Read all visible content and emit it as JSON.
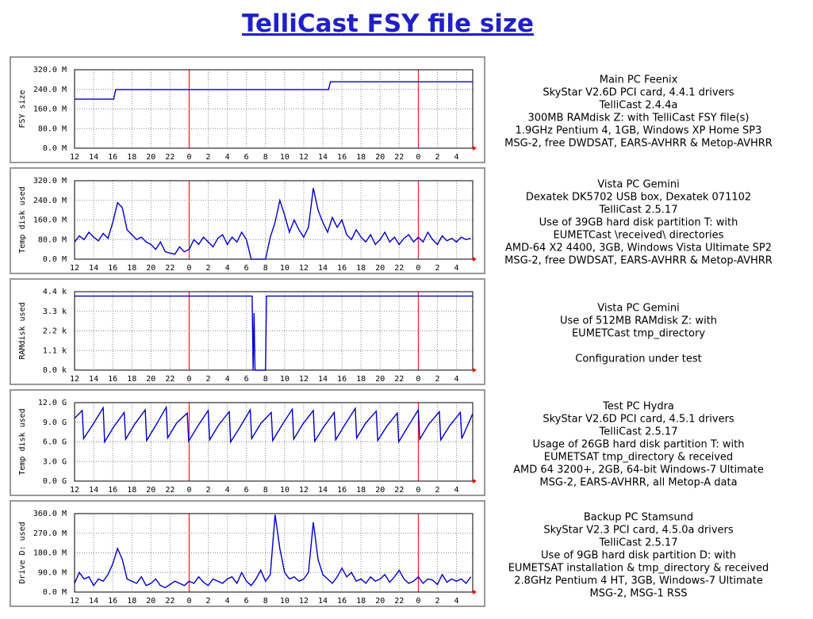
{
  "title": "TelliCast FSY file size",
  "chart_data": [
    {
      "type": "line",
      "ylabel": "FSY size",
      "color": "#0000cc",
      "ylim": [
        0,
        320
      ],
      "yticks": [
        {
          "value": 0,
          "label": "0.0 M"
        },
        {
          "value": 80,
          "label": "80.0 M"
        },
        {
          "value": 160,
          "label": "160.0 M"
        },
        {
          "value": 240,
          "label": "240.0 M"
        },
        {
          "value": 320,
          "label": "320.0 M"
        }
      ],
      "xlim": [
        0,
        41.7
      ],
      "xticks": [
        {
          "value": 0,
          "label": "12"
        },
        {
          "value": 2,
          "label": "14"
        },
        {
          "value": 4,
          "label": "16"
        },
        {
          "value": 6,
          "label": "18"
        },
        {
          "value": 8,
          "label": "20"
        },
        {
          "value": 10,
          "label": "22"
        },
        {
          "value": 12,
          "label": "0"
        },
        {
          "value": 14,
          "label": "2"
        },
        {
          "value": 16,
          "label": "4"
        },
        {
          "value": 18,
          "label": "6"
        },
        {
          "value": 20,
          "label": "8"
        },
        {
          "value": 22,
          "label": "10"
        },
        {
          "value": 24,
          "label": "12"
        },
        {
          "value": 26,
          "label": "14"
        },
        {
          "value": 28,
          "label": "16"
        },
        {
          "value": 30,
          "label": "18"
        },
        {
          "value": 32,
          "label": "20"
        },
        {
          "value": 34,
          "label": "22"
        },
        {
          "value": 36,
          "label": "0"
        },
        {
          "value": 38,
          "label": "2"
        },
        {
          "value": 40,
          "label": "4"
        }
      ],
      "highlight_x": [
        12,
        36
      ],
      "highlight_color": "#ff0000",
      "x": [
        0,
        4.1,
        4.3,
        26.6,
        26.8,
        41.7
      ],
      "values": [
        200,
        200,
        239,
        239,
        271,
        271
      ],
      "description": [
        "Main PC Feenix",
        "SkyStar V2.6D PCI card, 4.4.1 drivers",
        "TelliCast 2.4.4a",
        "300MB RAMdisk Z: with TelliCast FSY file(s)",
        "1.9GHz Pentium 4, 1GB, Windows XP Home SP3",
        "MSG-2, free DWDSAT, EARS-AVHRR & Metop-AVHRR"
      ]
    },
    {
      "type": "line",
      "ylabel": "Temp disk used",
      "color": "#0000cc",
      "ylim": [
        0,
        320
      ],
      "yticks": [
        {
          "value": 0,
          "label": "0.0 M"
        },
        {
          "value": 80,
          "label": "80.0 M"
        },
        {
          "value": 160,
          "label": "160.0 M"
        },
        {
          "value": 240,
          "label": "240.0 M"
        },
        {
          "value": 320,
          "label": "320.0 M"
        }
      ],
      "xlim": [
        0,
        41.7
      ],
      "xticks": [
        {
          "value": 0,
          "label": "12"
        },
        {
          "value": 2,
          "label": "14"
        },
        {
          "value": 4,
          "label": "16"
        },
        {
          "value": 6,
          "label": "18"
        },
        {
          "value": 8,
          "label": "20"
        },
        {
          "value": 10,
          "label": "22"
        },
        {
          "value": 12,
          "label": "0"
        },
        {
          "value": 14,
          "label": "2"
        },
        {
          "value": 16,
          "label": "4"
        },
        {
          "value": 18,
          "label": "6"
        },
        {
          "value": 20,
          "label": "8"
        },
        {
          "value": 22,
          "label": "10"
        },
        {
          "value": 24,
          "label": "12"
        },
        {
          "value": 26,
          "label": "14"
        },
        {
          "value": 28,
          "label": "16"
        },
        {
          "value": 30,
          "label": "18"
        },
        {
          "value": 32,
          "label": "20"
        },
        {
          "value": 34,
          "label": "22"
        },
        {
          "value": 36,
          "label": "0"
        },
        {
          "value": 38,
          "label": "2"
        },
        {
          "value": 40,
          "label": "4"
        }
      ],
      "highlight_x": [
        12,
        36
      ],
      "highlight_color": "#ff0000",
      "x": [
        0,
        0.5,
        1,
        1.5,
        2,
        2.5,
        3,
        3.5,
        4,
        4.5,
        5,
        5.5,
        6,
        6.5,
        7,
        7.5,
        8,
        8.5,
        9,
        9.5,
        10,
        10.5,
        11,
        11.5,
        12,
        12.5,
        13,
        13.5,
        14,
        14.5,
        15,
        15.5,
        16,
        16.5,
        17,
        17.5,
        18,
        18.5,
        19,
        19.5,
        20,
        20.5,
        21,
        21.5,
        22,
        22.5,
        23,
        23.5,
        24,
        24.5,
        25,
        25.5,
        26,
        26.5,
        27,
        27.5,
        28,
        28.5,
        29,
        29.5,
        30,
        30.5,
        31,
        31.5,
        32,
        32.5,
        33,
        33.5,
        34,
        34.5,
        35,
        35.5,
        36,
        36.5,
        37,
        37.5,
        38,
        38.5,
        39,
        39.5,
        40,
        40.5,
        41,
        41.5
      ],
      "values": [
        70,
        95,
        80,
        110,
        90,
        75,
        105,
        85,
        150,
        230,
        210,
        120,
        100,
        80,
        90,
        70,
        60,
        40,
        70,
        30,
        25,
        20,
        50,
        30,
        40,
        80,
        60,
        90,
        70,
        50,
        85,
        100,
        60,
        90,
        70,
        110,
        80,
        0,
        0,
        0,
        0,
        90,
        150,
        240,
        180,
        110,
        160,
        120,
        90,
        130,
        290,
        200,
        150,
        110,
        170,
        130,
        160,
        100,
        80,
        120,
        90,
        70,
        100,
        60,
        80,
        110,
        70,
        90,
        60,
        85,
        100,
        70,
        90,
        70,
        110,
        80,
        60,
        95,
        75,
        85,
        70,
        90,
        80,
        85
      ],
      "description": [
        "Vista PC Gemini",
        "Dexatek DK5702 USB box, Dexatek 071102",
        "TelliCast 2.5.17",
        "Use of 39GB hard disk partition T: with",
        "EUMETCast \\received\\ directories",
        "AMD-64 X2 4400, 3GB, Windows Vista Ultimate SP2",
        "MSG-2, free DWDSAT, EARS-AVHRR & Metop-AVHRR"
      ]
    },
    {
      "type": "line",
      "ylabel": "RAMdisk used",
      "color": "#0000cc",
      "ylim": [
        0,
        4.4
      ],
      "yticks": [
        {
          "value": 0,
          "label": "0.0 k"
        },
        {
          "value": 1.1,
          "label": "1.1 k"
        },
        {
          "value": 2.2,
          "label": "2.2 k"
        },
        {
          "value": 3.3,
          "label": "3.3 k"
        },
        {
          "value": 4.4,
          "label": "4.4 k"
        }
      ],
      "xlim": [
        0,
        41.7
      ],
      "xticks": [
        {
          "value": 0,
          "label": "12"
        },
        {
          "value": 2,
          "label": "14"
        },
        {
          "value": 4,
          "label": "16"
        },
        {
          "value": 6,
          "label": "18"
        },
        {
          "value": 8,
          "label": "20"
        },
        {
          "value": 10,
          "label": "22"
        },
        {
          "value": 12,
          "label": "0"
        },
        {
          "value": 14,
          "label": "2"
        },
        {
          "value": 16,
          "label": "4"
        },
        {
          "value": 18,
          "label": "6"
        },
        {
          "value": 20,
          "label": "8"
        },
        {
          "value": 22,
          "label": "10"
        },
        {
          "value": 24,
          "label": "12"
        },
        {
          "value": 26,
          "label": "14"
        },
        {
          "value": 28,
          "label": "16"
        },
        {
          "value": 30,
          "label": "18"
        },
        {
          "value": 32,
          "label": "20"
        },
        {
          "value": 34,
          "label": "22"
        },
        {
          "value": 36,
          "label": "0"
        },
        {
          "value": 38,
          "label": "2"
        },
        {
          "value": 40,
          "label": "4"
        }
      ],
      "highlight_x": [
        12,
        36
      ],
      "highlight_color": "#ff0000",
      "x": [
        0,
        18.6,
        18.7,
        18.8,
        18.9,
        20.0,
        20.1,
        41.7
      ],
      "values": [
        4.15,
        4.15,
        0,
        3.2,
        0,
        0,
        4.15,
        4.15
      ],
      "description": [
        "Vista PC Gemini",
        "Use of 512MB RAMdisk Z: with",
        "EUMETCast tmp_directory"
      ],
      "note": "Configuration under test"
    },
    {
      "type": "line",
      "ylabel": "Temp disk used",
      "color": "#0000cc",
      "ylim": [
        0,
        12
      ],
      "yticks": [
        {
          "value": 0,
          "label": "0.0 G"
        },
        {
          "value": 3,
          "label": "3.0 G"
        },
        {
          "value": 6,
          "label": "6.0 G"
        },
        {
          "value": 9,
          "label": "9.0 G"
        },
        {
          "value": 12,
          "label": "12.0 G"
        }
      ],
      "xlim": [
        0,
        41.7
      ],
      "xticks": [
        {
          "value": 0,
          "label": "12"
        },
        {
          "value": 2,
          "label": "14"
        },
        {
          "value": 4,
          "label": "16"
        },
        {
          "value": 6,
          "label": "18"
        },
        {
          "value": 8,
          "label": "20"
        },
        {
          "value": 10,
          "label": "22"
        },
        {
          "value": 12,
          "label": "0"
        },
        {
          "value": 14,
          "label": "2"
        },
        {
          "value": 16,
          "label": "4"
        },
        {
          "value": 18,
          "label": "6"
        },
        {
          "value": 20,
          "label": "8"
        },
        {
          "value": 22,
          "label": "10"
        },
        {
          "value": 24,
          "label": "12"
        },
        {
          "value": 26,
          "label": "14"
        },
        {
          "value": 28,
          "label": "16"
        },
        {
          "value": 30,
          "label": "18"
        },
        {
          "value": 32,
          "label": "20"
        },
        {
          "value": 34,
          "label": "22"
        },
        {
          "value": 36,
          "label": "0"
        },
        {
          "value": 38,
          "label": "2"
        },
        {
          "value": 40,
          "label": "4"
        }
      ],
      "highlight_x": [
        12,
        36
      ],
      "highlight_color": "#ff0000",
      "x": [
        0,
        0.8,
        0.95,
        1.9,
        3.0,
        3.15,
        4.1,
        5.2,
        5.35,
        6.3,
        7.4,
        7.55,
        8.5,
        9.6,
        9.75,
        10.7,
        11.8,
        11.95,
        12.9,
        14.0,
        14.15,
        15.1,
        16.2,
        16.35,
        17.3,
        18.4,
        18.55,
        19.5,
        20.6,
        20.75,
        21.7,
        22.8,
        22.95,
        23.9,
        25.0,
        25.15,
        26.1,
        27.2,
        27.35,
        28.3,
        29.4,
        29.55,
        30.5,
        31.6,
        31.75,
        32.7,
        33.8,
        33.95,
        34.9,
        36.0,
        36.15,
        37.1,
        38.2,
        38.35,
        39.3,
        40.4,
        40.55,
        41.7
      ],
      "values": [
        9.6,
        10.8,
        6.5,
        8.6,
        11.2,
        6.0,
        8.3,
        10.5,
        6.4,
        8.7,
        10.9,
        6.2,
        8.5,
        11.3,
        6.6,
        8.9,
        10.4,
        6.1,
        8.4,
        10.8,
        6.3,
        8.6,
        10.6,
        6.0,
        8.2,
        10.9,
        6.5,
        8.8,
        10.5,
        6.2,
        8.5,
        11.0,
        6.4,
        8.7,
        10.8,
        6.1,
        8.3,
        10.5,
        6.3,
        8.6,
        11.1,
        6.6,
        8.9,
        10.7,
        6.2,
        8.4,
        10.4,
        6.0,
        8.3,
        10.9,
        6.4,
        8.7,
        10.6,
        6.3,
        8.5,
        10.5,
        6.5,
        10.3
      ],
      "description": [
        "Test PC Hydra",
        "SkyStar V2.6D PCI card, 4.5.1 drivers",
        "TelliCast 2.5.17",
        "Usage of 26GB hard disk partition T: with",
        "EUMETSAT tmp_directory & received",
        "AMD 64 3200+, 2GB, 64-bit Windows-7 Ultimate",
        "MSG-2, EARS-AVHRR, all Metop-A data"
      ]
    },
    {
      "type": "line",
      "ylabel": "Drive D: used",
      "color": "#0000cc",
      "ylim": [
        0,
        360
      ],
      "yticks": [
        {
          "value": 0,
          "label": "0.0 M"
        },
        {
          "value": 90,
          "label": "90.0 M"
        },
        {
          "value": 180,
          "label": "180.0 M"
        },
        {
          "value": 270,
          "label": "270.0 M"
        },
        {
          "value": 360,
          "label": "360.0 M"
        }
      ],
      "xlim": [
        0,
        41.7
      ],
      "xticks": [
        {
          "value": 0,
          "label": "12"
        },
        {
          "value": 2,
          "label": "14"
        },
        {
          "value": 4,
          "label": "16"
        },
        {
          "value": 6,
          "label": "18"
        },
        {
          "value": 8,
          "label": "20"
        },
        {
          "value": 10,
          "label": "22"
        },
        {
          "value": 12,
          "label": "0"
        },
        {
          "value": 14,
          "label": "2"
        },
        {
          "value": 16,
          "label": "4"
        },
        {
          "value": 18,
          "label": "6"
        },
        {
          "value": 20,
          "label": "8"
        },
        {
          "value": 22,
          "label": "10"
        },
        {
          "value": 24,
          "label": "12"
        },
        {
          "value": 26,
          "label": "14"
        },
        {
          "value": 28,
          "label": "16"
        },
        {
          "value": 30,
          "label": "18"
        },
        {
          "value": 32,
          "label": "20"
        },
        {
          "value": 34,
          "label": "22"
        },
        {
          "value": 36,
          "label": "0"
        },
        {
          "value": 38,
          "label": "2"
        },
        {
          "value": 40,
          "label": "4"
        }
      ],
      "highlight_x": [
        12,
        36
      ],
      "highlight_color": "#ff0000",
      "x": [
        0,
        0.5,
        1,
        1.5,
        2,
        2.5,
        3,
        3.5,
        4,
        4.5,
        5,
        5.5,
        6,
        6.5,
        7,
        7.5,
        8,
        8.5,
        9,
        9.5,
        10,
        10.5,
        11,
        11.5,
        12,
        12.5,
        13,
        13.5,
        14,
        14.5,
        15,
        15.5,
        16,
        16.5,
        17,
        17.5,
        18,
        18.5,
        19,
        19.5,
        20,
        20.5,
        21,
        21.5,
        22,
        22.5,
        23,
        23.5,
        24,
        24.5,
        25,
        25.5,
        26,
        26.5,
        27,
        27.5,
        28,
        28.5,
        29,
        29.5,
        30,
        30.5,
        31,
        31.5,
        32,
        32.5,
        33,
        33.5,
        34,
        34.5,
        35,
        35.5,
        36,
        36.5,
        37,
        37.5,
        38,
        38.5,
        39,
        39.5,
        40,
        40.5,
        41,
        41.5
      ],
      "values": [
        40,
        90,
        60,
        70,
        30,
        60,
        50,
        80,
        130,
        200,
        150,
        60,
        50,
        40,
        70,
        30,
        40,
        60,
        30,
        20,
        35,
        50,
        40,
        30,
        50,
        40,
        70,
        45,
        30,
        60,
        50,
        40,
        60,
        70,
        40,
        90,
        50,
        30,
        60,
        100,
        50,
        80,
        355,
        200,
        90,
        60,
        70,
        50,
        60,
        90,
        320,
        150,
        80,
        60,
        40,
        70,
        110,
        70,
        90,
        50,
        60,
        40,
        70,
        50,
        60,
        80,
        45,
        70,
        100,
        60,
        40,
        50,
        70,
        40,
        60,
        55,
        35,
        80,
        45,
        60,
        50,
        60,
        40,
        70
      ],
      "description": [
        "Backup PC Stamsund",
        "SkyStar V2.3 PCI card, 4.5.0a drivers",
        "TelliCast 2.5.17",
        "Use of 9GB hard disk partition D: with",
        "EUMETSAT installation & tmp_directory & received",
        "2.8GHz Pentium 4 HT, 3GB, Windows-7 Ultimate",
        "MSG-2, MSG-1 RSS"
      ]
    }
  ]
}
